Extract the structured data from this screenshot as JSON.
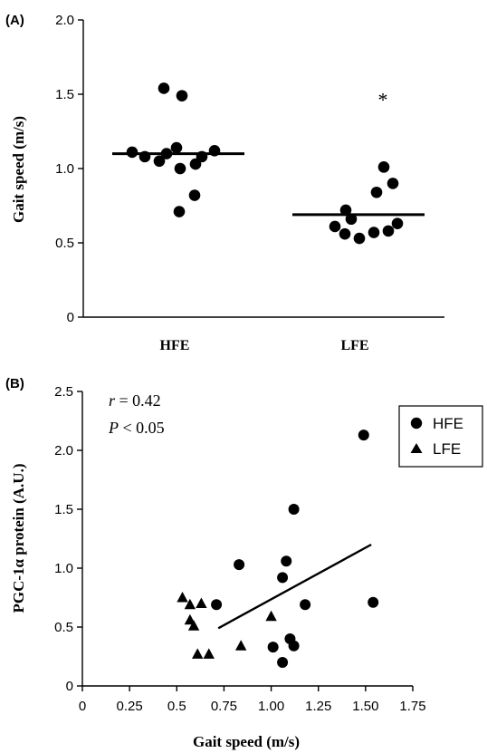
{
  "chart_data": [
    {
      "panel_label": "(A)",
      "type": "scatter",
      "xlabel": "",
      "ylabel": "Gait speed (m/s)",
      "categories": [
        "HFE",
        "LFE"
      ],
      "ylim": [
        0,
        2.0
      ],
      "yticks": [
        "0",
        "0.5",
        "1.0",
        "1.5",
        "2.0"
      ],
      "series": [
        {
          "category": "HFE",
          "mean": 1.1,
          "values": [
            1.54,
            1.49,
            1.14,
            1.11,
            1.08,
            1.05,
            1.1,
            1.12,
            1.08,
            1.0,
            1.03,
            0.82,
            0.71
          ]
        },
        {
          "category": "LFE",
          "mean": 0.69,
          "values": [
            1.01,
            0.9,
            0.84,
            0.72,
            0.66,
            0.61,
            0.56,
            0.53,
            0.57,
            0.58,
            0.63
          ]
        }
      ],
      "annotation": "*",
      "annotation_category": "LFE",
      "annotation_y": 1.49
    },
    {
      "panel_label": "(B)",
      "type": "scatter",
      "xlabel": "Gait speed (m/s)",
      "ylabel": "PGC-1α protein (A.U.)",
      "xlim": [
        0,
        1.75
      ],
      "ylim": [
        0,
        2.5
      ],
      "xticks": [
        "0",
        "0.25",
        "0.5",
        "0.75",
        "1.00",
        "1.25",
        "1.50",
        "1.75"
      ],
      "yticks": [
        "0",
        "0.5",
        "1.0",
        "1.5",
        "2.0",
        "2.5"
      ],
      "stats": {
        "r_label": "r",
        "r_text": " = 0.42",
        "p_label": "P",
        "p_text": " < 0.05"
      },
      "legend": {
        "position": "top-right",
        "hfe_marker": "circle",
        "lfe_marker": "triangle"
      },
      "series": [
        {
          "name": "HFE",
          "marker": "circle",
          "points": [
            [
              1.49,
              2.13
            ],
            [
              1.12,
              1.5
            ],
            [
              0.83,
              1.03
            ],
            [
              1.08,
              1.06
            ],
            [
              1.06,
              0.92
            ],
            [
              0.71,
              0.69
            ],
            [
              1.18,
              0.69
            ],
            [
              1.54,
              0.71
            ],
            [
              1.1,
              0.4
            ],
            [
              1.12,
              0.34
            ],
            [
              1.01,
              0.33
            ],
            [
              1.06,
              0.2
            ]
          ]
        },
        {
          "name": "LFE",
          "marker": "triangle",
          "points": [
            [
              0.53,
              0.75
            ],
            [
              0.57,
              0.69
            ],
            [
              0.63,
              0.7
            ],
            [
              0.57,
              0.56
            ],
            [
              0.59,
              0.51
            ],
            [
              0.61,
              0.27
            ],
            [
              0.67,
              0.27
            ],
            [
              0.84,
              0.34
            ],
            [
              1.0,
              0.59
            ]
          ]
        }
      ],
      "regression": {
        "x": [
          0.72,
          1.53
        ],
        "y": [
          0.49,
          1.2
        ]
      }
    }
  ]
}
